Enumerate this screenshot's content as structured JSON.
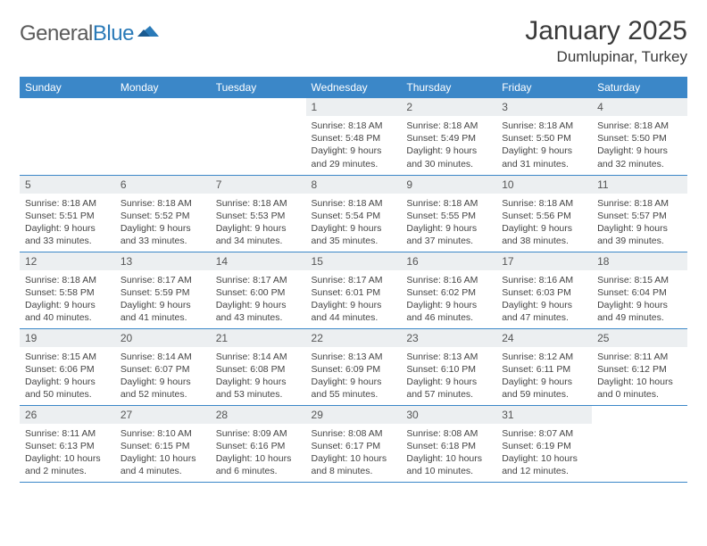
{
  "brand": {
    "word1": "General",
    "word2": "Blue"
  },
  "title": "January 2025",
  "location": "Dumlupinar, Turkey",
  "colors": {
    "header_bg": "#3b87c8",
    "header_text": "#ffffff",
    "daynum_bg": "#eceff1",
    "border": "#3b87c8",
    "body_text": "#444444",
    "title_text": "#3a3a3a"
  },
  "weekdays": [
    "Sunday",
    "Monday",
    "Tuesday",
    "Wednesday",
    "Thursday",
    "Friday",
    "Saturday"
  ],
  "weeks": [
    [
      null,
      null,
      null,
      {
        "n": "1",
        "sr": "8:18 AM",
        "ss": "5:48 PM",
        "dl": "9 hours and 29 minutes."
      },
      {
        "n": "2",
        "sr": "8:18 AM",
        "ss": "5:49 PM",
        "dl": "9 hours and 30 minutes."
      },
      {
        "n": "3",
        "sr": "8:18 AM",
        "ss": "5:50 PM",
        "dl": "9 hours and 31 minutes."
      },
      {
        "n": "4",
        "sr": "8:18 AM",
        "ss": "5:50 PM",
        "dl": "9 hours and 32 minutes."
      }
    ],
    [
      {
        "n": "5",
        "sr": "8:18 AM",
        "ss": "5:51 PM",
        "dl": "9 hours and 33 minutes."
      },
      {
        "n": "6",
        "sr": "8:18 AM",
        "ss": "5:52 PM",
        "dl": "9 hours and 33 minutes."
      },
      {
        "n": "7",
        "sr": "8:18 AM",
        "ss": "5:53 PM",
        "dl": "9 hours and 34 minutes."
      },
      {
        "n": "8",
        "sr": "8:18 AM",
        "ss": "5:54 PM",
        "dl": "9 hours and 35 minutes."
      },
      {
        "n": "9",
        "sr": "8:18 AM",
        "ss": "5:55 PM",
        "dl": "9 hours and 37 minutes."
      },
      {
        "n": "10",
        "sr": "8:18 AM",
        "ss": "5:56 PM",
        "dl": "9 hours and 38 minutes."
      },
      {
        "n": "11",
        "sr": "8:18 AM",
        "ss": "5:57 PM",
        "dl": "9 hours and 39 minutes."
      }
    ],
    [
      {
        "n": "12",
        "sr": "8:18 AM",
        "ss": "5:58 PM",
        "dl": "9 hours and 40 minutes."
      },
      {
        "n": "13",
        "sr": "8:17 AM",
        "ss": "5:59 PM",
        "dl": "9 hours and 41 minutes."
      },
      {
        "n": "14",
        "sr": "8:17 AM",
        "ss": "6:00 PM",
        "dl": "9 hours and 43 minutes."
      },
      {
        "n": "15",
        "sr": "8:17 AM",
        "ss": "6:01 PM",
        "dl": "9 hours and 44 minutes."
      },
      {
        "n": "16",
        "sr": "8:16 AM",
        "ss": "6:02 PM",
        "dl": "9 hours and 46 minutes."
      },
      {
        "n": "17",
        "sr": "8:16 AM",
        "ss": "6:03 PM",
        "dl": "9 hours and 47 minutes."
      },
      {
        "n": "18",
        "sr": "8:15 AM",
        "ss": "6:04 PM",
        "dl": "9 hours and 49 minutes."
      }
    ],
    [
      {
        "n": "19",
        "sr": "8:15 AM",
        "ss": "6:06 PM",
        "dl": "9 hours and 50 minutes."
      },
      {
        "n": "20",
        "sr": "8:14 AM",
        "ss": "6:07 PM",
        "dl": "9 hours and 52 minutes."
      },
      {
        "n": "21",
        "sr": "8:14 AM",
        "ss": "6:08 PM",
        "dl": "9 hours and 53 minutes."
      },
      {
        "n": "22",
        "sr": "8:13 AM",
        "ss": "6:09 PM",
        "dl": "9 hours and 55 minutes."
      },
      {
        "n": "23",
        "sr": "8:13 AM",
        "ss": "6:10 PM",
        "dl": "9 hours and 57 minutes."
      },
      {
        "n": "24",
        "sr": "8:12 AM",
        "ss": "6:11 PM",
        "dl": "9 hours and 59 minutes."
      },
      {
        "n": "25",
        "sr": "8:11 AM",
        "ss": "6:12 PM",
        "dl": "10 hours and 0 minutes."
      }
    ],
    [
      {
        "n": "26",
        "sr": "8:11 AM",
        "ss": "6:13 PM",
        "dl": "10 hours and 2 minutes."
      },
      {
        "n": "27",
        "sr": "8:10 AM",
        "ss": "6:15 PM",
        "dl": "10 hours and 4 minutes."
      },
      {
        "n": "28",
        "sr": "8:09 AM",
        "ss": "6:16 PM",
        "dl": "10 hours and 6 minutes."
      },
      {
        "n": "29",
        "sr": "8:08 AM",
        "ss": "6:17 PM",
        "dl": "10 hours and 8 minutes."
      },
      {
        "n": "30",
        "sr": "8:08 AM",
        "ss": "6:18 PM",
        "dl": "10 hours and 10 minutes."
      },
      {
        "n": "31",
        "sr": "8:07 AM",
        "ss": "6:19 PM",
        "dl": "10 hours and 12 minutes."
      },
      null
    ]
  ],
  "labels": {
    "sunrise": "Sunrise:",
    "sunset": "Sunset:",
    "daylight": "Daylight:"
  }
}
